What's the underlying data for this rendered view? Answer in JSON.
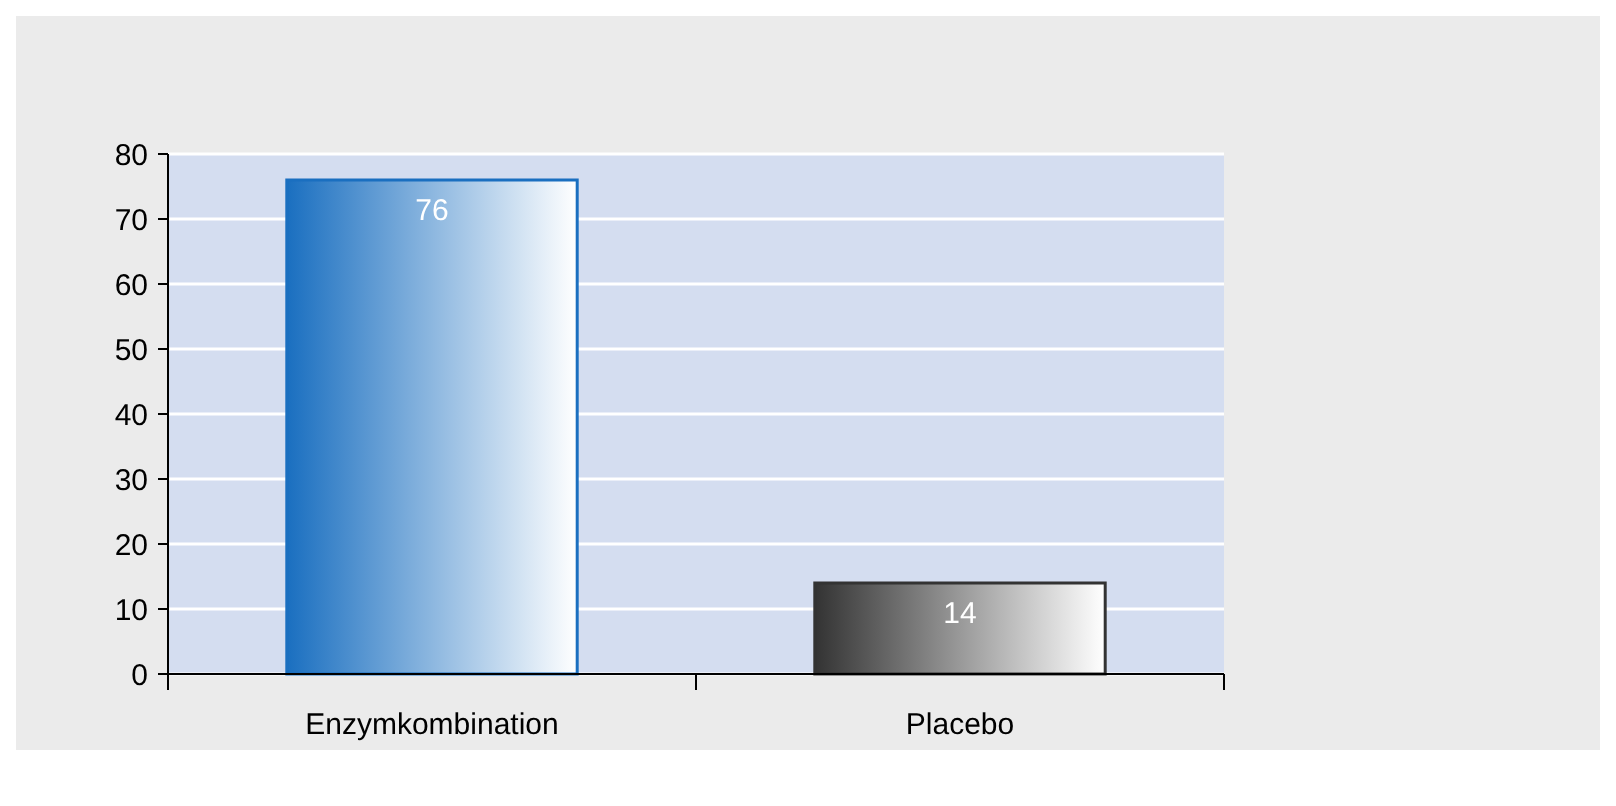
{
  "chart_data": {
    "type": "bar",
    "categories": [
      "Enzymkombination",
      "Placebo"
    ],
    "values": [
      76,
      14
    ],
    "colors": [
      "#1a6fc0",
      "#333333"
    ],
    "ylim": [
      0,
      80
    ],
    "yticks": [
      0,
      10,
      20,
      30,
      40,
      50,
      60,
      70,
      80
    ],
    "grid": "y",
    "data_labels": true
  }
}
